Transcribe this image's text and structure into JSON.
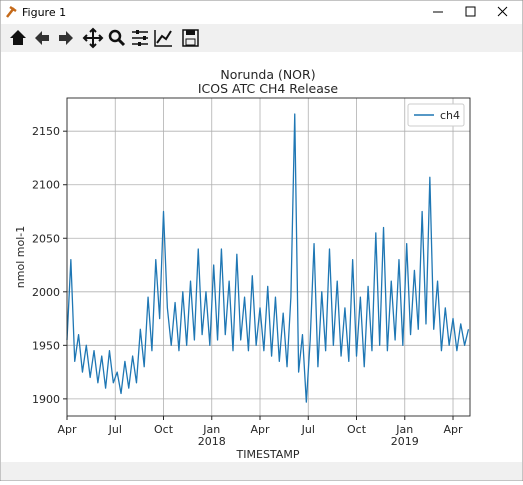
{
  "window": {
    "title": "Figure 1"
  },
  "chart_data": {
    "type": "line",
    "title": "Norunda (NOR)",
    "subtitle": "ICOS ATC CH4 Release",
    "xlabel": "TIMESTAMP",
    "ylabel": "nmol mol-1",
    "x": [
      2017.25,
      2017.27,
      2017.29,
      2017.31,
      2017.33,
      2017.35,
      2017.37,
      2017.39,
      2017.41,
      2017.43,
      2017.45,
      2017.47,
      2017.49,
      2017.51,
      2017.53,
      2017.55,
      2017.57,
      2017.59,
      2017.61,
      2017.63,
      2017.65,
      2017.67,
      2017.69,
      2017.71,
      2017.73,
      2017.75,
      2017.77,
      2017.79,
      2017.81,
      2017.83,
      2017.85,
      2017.87,
      2017.89,
      2017.91,
      2017.93,
      2017.95,
      2017.97,
      2017.99,
      2018.01,
      2018.03,
      2018.05,
      2018.07,
      2018.09,
      2018.11,
      2018.13,
      2018.15,
      2018.17,
      2018.19,
      2018.21,
      2018.23,
      2018.25,
      2018.27,
      2018.29,
      2018.31,
      2018.33,
      2018.35,
      2018.37,
      2018.39,
      2018.41,
      2018.43,
      2018.45,
      2018.47,
      2018.49,
      2018.51,
      2018.53,
      2018.55,
      2018.57,
      2018.59,
      2018.61,
      2018.63,
      2018.65,
      2018.67,
      2018.69,
      2018.71,
      2018.73,
      2018.75,
      2018.77,
      2018.79,
      2018.81,
      2018.83,
      2018.85,
      2018.87,
      2018.89,
      2018.91,
      2018.93,
      2018.95,
      2018.97,
      2018.99,
      2019.01,
      2019.03,
      2019.05,
      2019.07,
      2019.09,
      2019.11,
      2019.13,
      2019.15,
      2019.17,
      2019.19,
      2019.21,
      2019.23,
      2019.25,
      2019.27,
      2019.29,
      2019.31,
      2019.33
    ],
    "series": [
      {
        "name": "ch4",
        "color": "#1f77b4",
        "values": [
          1955,
          2030,
          1935,
          1960,
          1925,
          1950,
          1920,
          1945,
          1915,
          1940,
          1910,
          1945,
          1915,
          1925,
          1905,
          1935,
          1910,
          1940,
          1915,
          1965,
          1930,
          1995,
          1945,
          2030,
          1975,
          2075,
          1985,
          1950,
          1990,
          1945,
          2000,
          1950,
          2010,
          1955,
          2040,
          1960,
          2000,
          1950,
          2025,
          1955,
          2040,
          1960,
          2010,
          1945,
          2035,
          1955,
          1995,
          1945,
          2015,
          1950,
          1985,
          1945,
          2005,
          1940,
          1995,
          1935,
          1980,
          1930,
          1995,
          2166,
          1925,
          1960,
          1897,
          1955,
          2045,
          1930,
          2000,
          1945,
          2040,
          1950,
          2010,
          1940,
          1985,
          1935,
          2030,
          1940,
          1995,
          1930,
          2005,
          1945,
          2055,
          1950,
          2060,
          1945,
          2010,
          1955,
          2030,
          1950,
          2045,
          1960,
          2020,
          1965,
          2075,
          1970,
          2107,
          1965,
          2010,
          1945,
          1985,
          1950,
          1975,
          1945,
          1970,
          1950,
          1965
        ]
      }
    ],
    "xlim": [
      2017.25,
      2019.338
    ],
    "xticks": [
      {
        "value": 2017.25,
        "label": "Apr"
      },
      {
        "value": 2017.5,
        "label": "Jul"
      },
      {
        "value": 2017.75,
        "label": "Oct"
      },
      {
        "value": 2018.0,
        "label": "Jan"
      },
      {
        "value": 2018.25,
        "label": "Apr"
      },
      {
        "value": 2018.5,
        "label": "Jul"
      },
      {
        "value": 2018.75,
        "label": "Oct"
      },
      {
        "value": 2019.0,
        "label": "Jan"
      },
      {
        "value": 2019.25,
        "label": "Apr"
      }
    ],
    "year_labels": [
      2018,
      2019
    ],
    "ylim": [
      1884,
      2181
    ],
    "yticks": [
      1900,
      1950,
      2000,
      2050,
      2100,
      2150
    ],
    "grid": true,
    "legend": "upper right"
  }
}
